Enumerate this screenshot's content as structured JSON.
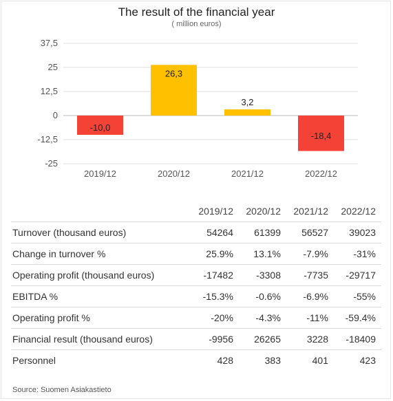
{
  "chart_data": {
    "type": "bar",
    "title": "The result of the financial year",
    "subtitle": "( million euros)",
    "categories": [
      "2019/12",
      "2020/12",
      "2021/12",
      "2022/12"
    ],
    "values": [
      -10.0,
      26.3,
      3.2,
      -18.4
    ],
    "value_labels": [
      "-10,0",
      "26,3",
      "3,2",
      "-18,4"
    ],
    "y_ticks": [
      "37,5",
      "25",
      "12,5",
      "0",
      "-12,5",
      "-25"
    ],
    "y_tick_values": [
      37.5,
      25,
      12.5,
      0,
      -12.5,
      -25
    ],
    "ylim": [
      -25,
      37.5
    ],
    "grid": true,
    "colors": {
      "positive": "#ffc000",
      "negative": "#f44336",
      "grid": "#dddddd",
      "axis": "#bbbbbb"
    }
  },
  "table": {
    "columns": [
      "2019/12",
      "2020/12",
      "2021/12",
      "2022/12"
    ],
    "rows": [
      {
        "label": "Turnover (thousand euros)",
        "values": [
          "54264",
          "61399",
          "56527",
          "39023"
        ]
      },
      {
        "label": "Change in turnover %",
        "values": [
          "25.9%",
          "13.1%",
          "-7.9%",
          "-31%"
        ]
      },
      {
        "label": "Operating profit (thousand euros)",
        "values": [
          "-17482",
          "-3308",
          "-7735",
          "-29717"
        ]
      },
      {
        "label": "EBITDA %",
        "values": [
          "-15.3%",
          "-0.6%",
          "-6.9%",
          "-55%"
        ]
      },
      {
        "label": "Operating profit %",
        "values": [
          "-20%",
          "-4.3%",
          "-11%",
          "-59.4%"
        ]
      },
      {
        "label": "Financial result (thousand euros)",
        "values": [
          "-9956",
          "26265",
          "3228",
          "-18409"
        ]
      },
      {
        "label": "Personnel",
        "values": [
          "428",
          "383",
          "401",
          "423"
        ]
      }
    ]
  },
  "source": "Source: Suomen Asiakastieto"
}
